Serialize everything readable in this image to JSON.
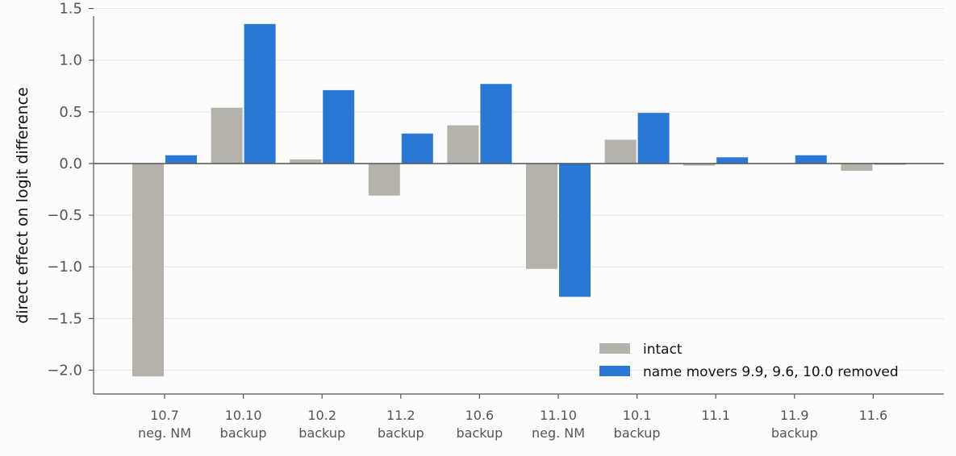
{
  "chart_data": {
    "type": "bar",
    "categories": [
      "10.7",
      "10.10",
      "10.2",
      "11.2",
      "10.6",
      "11.10",
      "10.1",
      "11.1",
      "11.9",
      "11.6"
    ],
    "category_sublabels": [
      "neg. NM",
      "backup",
      "backup",
      "backup",
      "backup",
      "neg. NM",
      "backup",
      "",
      "backup",
      ""
    ],
    "series": [
      {
        "name": "intact",
        "color": "#b5b2ab",
        "values": [
          -2.06,
          0.54,
          0.04,
          -0.31,
          0.37,
          -1.02,
          0.23,
          -0.02,
          0.0,
          -0.07
        ]
      },
      {
        "name": "name movers 9.9, 9.6, 10.0 removed",
        "color": "#2a78d6",
        "values": [
          0.08,
          1.35,
          0.71,
          0.29,
          0.77,
          -1.29,
          0.49,
          0.06,
          0.08,
          -0.01
        ]
      }
    ],
    "ylabel": "direct effect on logit difference",
    "ylim": [
      -2.23,
      1.52
    ],
    "yticks": [
      1.5,
      1.0,
      0.5,
      0.0,
      -0.5,
      -1.0,
      -1.5,
      -2.0
    ],
    "ytick_labels": [
      "1.5",
      "1.0",
      "0.5",
      "0.0",
      "−0.5",
      "−1.0",
      "−1.5",
      "−2.0"
    ],
    "grid": "horizontal",
    "legend_position": "lower-right"
  }
}
